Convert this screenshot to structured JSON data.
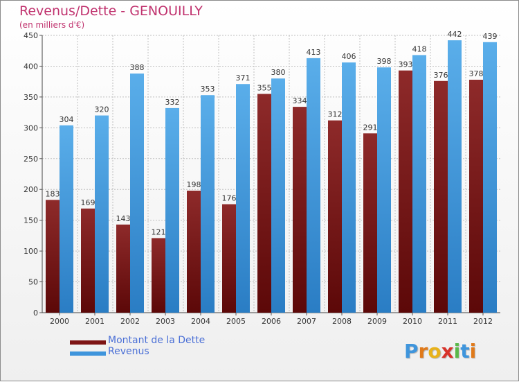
{
  "colors": {
    "debt": "#7d1414",
    "revenue": "#3f95dc",
    "title": "#c0326e",
    "legend_text": "#4a6fd6",
    "grid": "#bfbfbf"
  },
  "chart_data": {
    "type": "bar",
    "title": "Revenus/Dette - GENOUILLY",
    "subtitle": "(en milliers d'€)",
    "xlabel": "",
    "ylabel": "",
    "ylim": [
      0,
      450
    ],
    "yticks": [
      0,
      50,
      100,
      150,
      200,
      250,
      300,
      350,
      400,
      450
    ],
    "grid": true,
    "categories": [
      "2000",
      "2001",
      "2002",
      "2003",
      "2004",
      "2005",
      "2006",
      "2007",
      "2008",
      "2009",
      "2010",
      "2011",
      "2012"
    ],
    "series": [
      {
        "name": "Montant de la Dette",
        "values": [
          183,
          169,
          143,
          121,
          198,
          176,
          355,
          334,
          312,
          291,
          393,
          376,
          378
        ]
      },
      {
        "name": "Revenus",
        "values": [
          304,
          320,
          388,
          332,
          353,
          371,
          380,
          413,
          406,
          398,
          418,
          442,
          439
        ]
      }
    ],
    "legend_position": "bottom-left"
  },
  "logo": {
    "text": "Proxiti",
    "letters": [
      "P",
      "r",
      "o",
      "x",
      "i",
      "t",
      "i"
    ],
    "letter_colors": [
      "#3f95dc",
      "#e07a1a",
      "#e8b21a",
      "#d8322a",
      "#5ab84a",
      "#3f95dc",
      "#e07a1a"
    ]
  }
}
